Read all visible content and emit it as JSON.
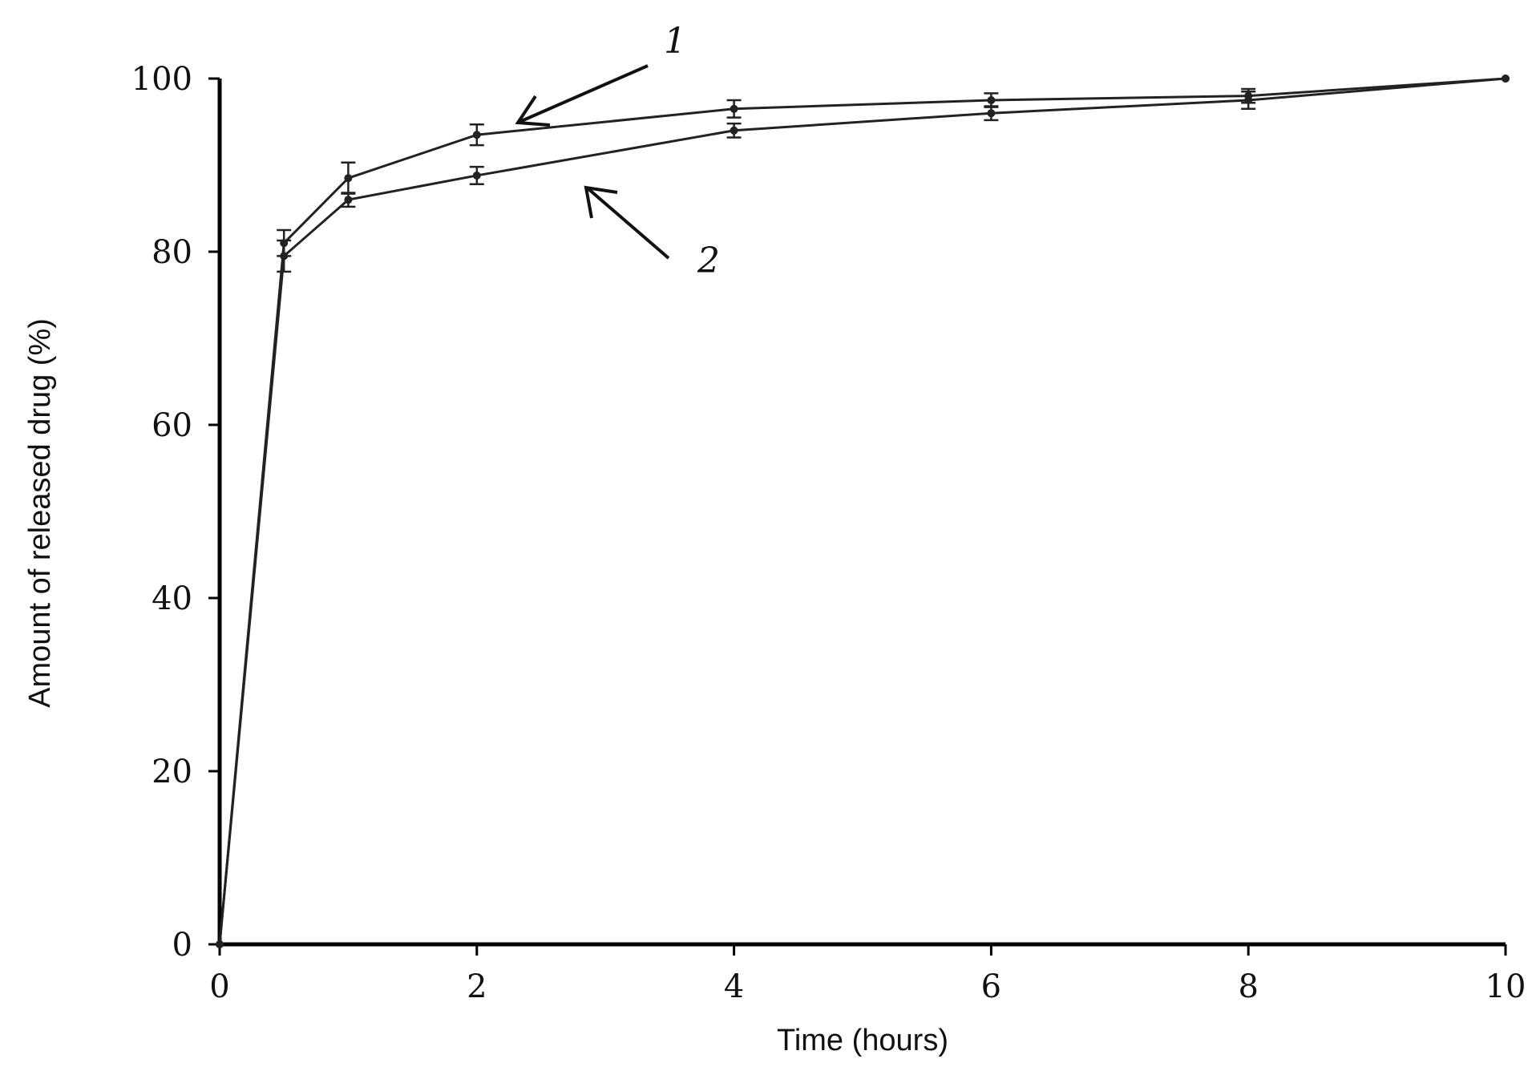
{
  "chart_data": {
    "type": "line",
    "xlabel": "Time (hours)",
    "ylabel": "Amount of released drug (%)",
    "xlim": [
      0,
      10
    ],
    "ylim": [
      0,
      100
    ],
    "x_ticks": [
      "0",
      "2",
      "4",
      "6",
      "8",
      "10"
    ],
    "y_ticks": [
      "0",
      "20",
      "40",
      "60",
      "80",
      "100"
    ],
    "grid": false,
    "x": [
      0,
      0.5,
      1,
      2,
      4,
      6,
      8,
      10
    ],
    "series": [
      {
        "name": "1",
        "values": [
          0,
          81,
          88.5,
          93.5,
          96.5,
          97.5,
          98,
          100
        ],
        "errors": [
          0,
          1.5,
          1.8,
          1.2,
          1.0,
          0.8,
          0.8,
          0
        ]
      },
      {
        "name": "2",
        "values": [
          0,
          79.5,
          86,
          88.8,
          94,
          96,
          97.5,
          100
        ],
        "errors": [
          0,
          1.8,
          0.8,
          1.0,
          0.8,
          0.8,
          1.0,
          0
        ]
      }
    ],
    "annotations": [
      "1",
      "2"
    ]
  }
}
